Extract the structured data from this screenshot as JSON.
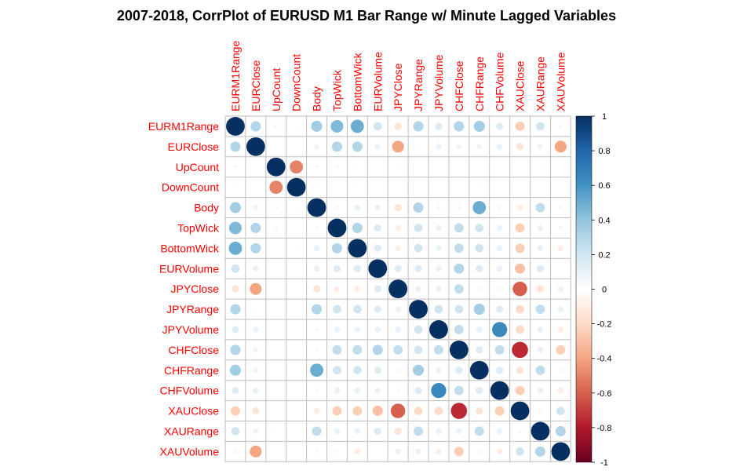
{
  "chart_data": {
    "type": "heatmap",
    "title": "2007-2018, CorrPlot of EURUSD M1 Bar Range w/ Minute Lagged Variables",
    "variables": [
      "EURM1Range",
      "EURClose",
      "UpCount",
      "DownCount",
      "Body",
      "TopWick",
      "BottomWick",
      "EURVolume",
      "JPYClose",
      "JPYRange",
      "JPYVolume",
      "CHFClose",
      "CHFRange",
      "CHFVolume",
      "XAUClose",
      "XAURange",
      "XAUVolume"
    ],
    "matrix": [
      [
        1,
        0.3,
        0.05,
        0.03,
        0.35,
        0.45,
        0.5,
        0.2,
        -0.15,
        0.3,
        0.15,
        0.3,
        0.35,
        0.15,
        -0.25,
        0.2,
        -0.05
      ],
      [
        0.3,
        1,
        0,
        0,
        0.08,
        0.3,
        0.3,
        0.1,
        -0.4,
        0.02,
        0.1,
        0.08,
        0.08,
        0.1,
        -0.15,
        0.08,
        -0.4
      ],
      [
        0.05,
        0,
        1,
        -0.5,
        0.05,
        0.05,
        0.02,
        0,
        0.02,
        0,
        0,
        0,
        0.02,
        0,
        0,
        0.02,
        0
      ],
      [
        0.03,
        0,
        -0.5,
        1,
        0.02,
        0,
        0.02,
        0,
        0,
        0,
        0,
        0,
        0.02,
        0,
        0,
        0,
        0
      ],
      [
        0.35,
        0.08,
        0.05,
        0.02,
        1,
        0.05,
        0.1,
        0.1,
        -0.15,
        0.3,
        0.05,
        0.05,
        0.5,
        0.05,
        -0.1,
        0.25,
        0.05
      ],
      [
        0.45,
        0.3,
        0.05,
        0,
        0.05,
        1,
        0.3,
        0.15,
        -0.1,
        0.2,
        0.1,
        0.25,
        0.2,
        0.1,
        -0.25,
        0.1,
        0.05
      ],
      [
        0.5,
        0.3,
        0.02,
        0.02,
        0.1,
        0.3,
        1,
        0.15,
        -0.1,
        0.2,
        0.1,
        0.25,
        0.2,
        0.1,
        -0.25,
        0.1,
        -0.1
      ],
      [
        0.2,
        0.1,
        0,
        0,
        0.1,
        0.15,
        0.15,
        1,
        0.15,
        0.15,
        0.1,
        0.3,
        0.15,
        0.1,
        -0.3,
        0.15,
        0
      ],
      [
        -0.15,
        -0.4,
        0.02,
        0,
        -0.15,
        -0.1,
        -0.1,
        0.15,
        1,
        0.1,
        0.1,
        0.25,
        -0.05,
        0.05,
        -0.6,
        -0.15,
        0.1
      ],
      [
        0.3,
        0.02,
        0,
        0,
        0.3,
        0.2,
        0.2,
        0.15,
        0.1,
        1,
        0.2,
        0.2,
        0.35,
        0.15,
        -0.2,
        0.25,
        0.1
      ],
      [
        0.15,
        0.1,
        0,
        0,
        0.05,
        0.1,
        0.1,
        0.1,
        0.1,
        0.2,
        1,
        0.25,
        0.1,
        0.65,
        -0.2,
        0.1,
        -0.1
      ],
      [
        0.3,
        0.08,
        0,
        0,
        0.05,
        0.25,
        0.25,
        0.3,
        0.25,
        0.2,
        0.25,
        1,
        0.15,
        0.25,
        -0.75,
        0.1,
        -0.25
      ],
      [
        0.35,
        0.08,
        0.02,
        0.02,
        0.5,
        0.2,
        0.2,
        0.15,
        -0.05,
        0.35,
        0.1,
        0.15,
        1,
        0.15,
        -0.15,
        0.25,
        0.05
      ],
      [
        0.15,
        0.1,
        0,
        0,
        0.05,
        0.1,
        0.1,
        0.1,
        0.05,
        0.15,
        0.65,
        0.25,
        0.15,
        1,
        -0.25,
        0.1,
        -0.1
      ],
      [
        -0.25,
        -0.15,
        0,
        0,
        -0.1,
        -0.25,
        -0.25,
        -0.3,
        -0.6,
        -0.2,
        -0.2,
        -0.75,
        -0.15,
        -0.25,
        1,
        -0.05,
        0.2
      ],
      [
        0.2,
        0.08,
        0.02,
        0,
        0.25,
        0.1,
        0.1,
        0.15,
        -0.15,
        0.25,
        0.1,
        0.1,
        0.25,
        0.1,
        -0.05,
        1,
        0.3
      ],
      [
        -0.05,
        -0.4,
        0,
        0,
        0.05,
        0.05,
        -0.1,
        0,
        0.1,
        0.1,
        -0.1,
        -0.25,
        0.05,
        -0.1,
        0.2,
        0.3,
        1
      ]
    ],
    "colorbar": {
      "ticks": [
        "1",
        "0.8",
        "0.6",
        "0.4",
        "0.2",
        "0",
        "-0.2",
        "-0.4",
        "-0.6",
        "-0.8",
        "-1"
      ],
      "range": [
        -1,
        1
      ]
    },
    "label_color": "#ff0000",
    "grid_color": "#bebebe",
    "color_stops": [
      "#67001f",
      "#b2182b",
      "#d6604d",
      "#f4a582",
      "#fddbc7",
      "#ffffff",
      "#d1e5f0",
      "#92c5de",
      "#4393c3",
      "#2166ac",
      "#053061"
    ]
  }
}
